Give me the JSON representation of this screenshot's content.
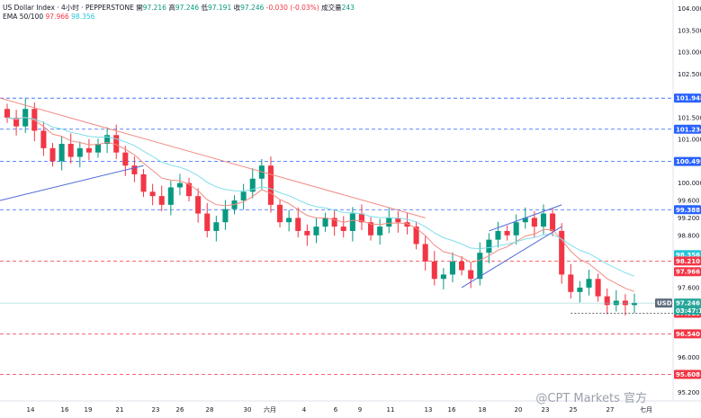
{
  "header": {
    "symbol": "US Dollar Index · 4小时 · PEPPERSTONE",
    "open_label": "開",
    "open": "97.216",
    "high_label": "高",
    "high": "97.246",
    "low_label": "低",
    "low": "97.191",
    "close_label": "收",
    "close": "97.246",
    "change": "-0.030 (-0.03%)",
    "volume_label": "成交量",
    "volume": "243",
    "ema_label": "EMA 50/100",
    "ema50": "97.966",
    "ema100": "98.356"
  },
  "colors": {
    "up": "#089981",
    "down": "#f23645",
    "ema50": "#f28b82",
    "ema100": "#80deea",
    "trendline_red": "#f28b82",
    "trendline_blue": "#4f6bd8",
    "level_blue": "#2962ff",
    "level_red": "#f23645"
  },
  "chart_data": {
    "type": "candlestick",
    "symbol": "USDX",
    "timeframe": "4小时",
    "ylim": [
      95.0,
      104.2
    ],
    "y_ticks": [
      "104.000",
      "103.500",
      "103.000",
      "102.500",
      "101.948",
      "101.500",
      "101.234",
      "101.000",
      "100.495",
      "100.000",
      "99.600",
      "99.388",
      "99.200",
      "98.800",
      "98.356",
      "98.210",
      "97.966",
      "97.600",
      "97.246",
      "97.010",
      "96.540",
      "96.000",
      "95.608",
      "95.200"
    ],
    "x_ticks": [
      "14",
      "16",
      "19",
      "21",
      "23",
      "26",
      "28",
      "30",
      "六月",
      "4",
      "6",
      "9",
      "11",
      "13",
      "16",
      "18",
      "20",
      "23",
      "25",
      "27",
      "七月"
    ],
    "price_levels": [
      {
        "value": 101.948,
        "label": "101.948",
        "style": "blue-dashed"
      },
      {
        "value": 101.234,
        "label": "101.234",
        "style": "blue-dashed"
      },
      {
        "value": 100.495,
        "label": "100.495",
        "style": "blue-dashed"
      },
      {
        "value": 99.388,
        "label": "99.388",
        "style": "blue-dashed"
      },
      {
        "value": 98.21,
        "label": "98.210",
        "style": "red-dashed"
      },
      {
        "value": 96.54,
        "label": "96.540",
        "style": "red-dashed"
      },
      {
        "value": 95.608,
        "label": "95.608",
        "style": "red-dashed"
      }
    ],
    "ema50_value": 97.966,
    "ema100_value": 98.356,
    "last_price": {
      "value": 97.246,
      "label": "USDX",
      "countdown": "03:47:12"
    },
    "recent_low": {
      "value": 97.01,
      "label": "97.010"
    },
    "closes": [
      101.5,
      101.3,
      101.7,
      101.2,
      100.8,
      100.5,
      100.9,
      100.6,
      100.8,
      100.7,
      100.9,
      101.1,
      100.7,
      100.4,
      100.2,
      99.8,
      99.7,
      99.5,
      99.9,
      100.0,
      99.7,
      99.3,
      98.9,
      99.1,
      99.4,
      99.6,
      99.8,
      100.1,
      100.4,
      99.5,
      99.1,
      99.2,
      98.9,
      98.8,
      99.0,
      99.2,
      99.0,
      98.9,
      99.3,
      99.1,
      98.8,
      99.0,
      99.2,
      99.1,
      99.0,
      98.6,
      98.2,
      97.8,
      97.9,
      98.2,
      98.0,
      97.8,
      98.4,
      98.7,
      98.9,
      98.8,
      99.1,
      99.2,
      99.0,
      99.3,
      98.9,
      97.9,
      97.5,
      97.6,
      97.8,
      97.4,
      97.2,
      97.3,
      97.2,
      97.25
    ]
  },
  "watermark": "@CPT Markets 官方"
}
